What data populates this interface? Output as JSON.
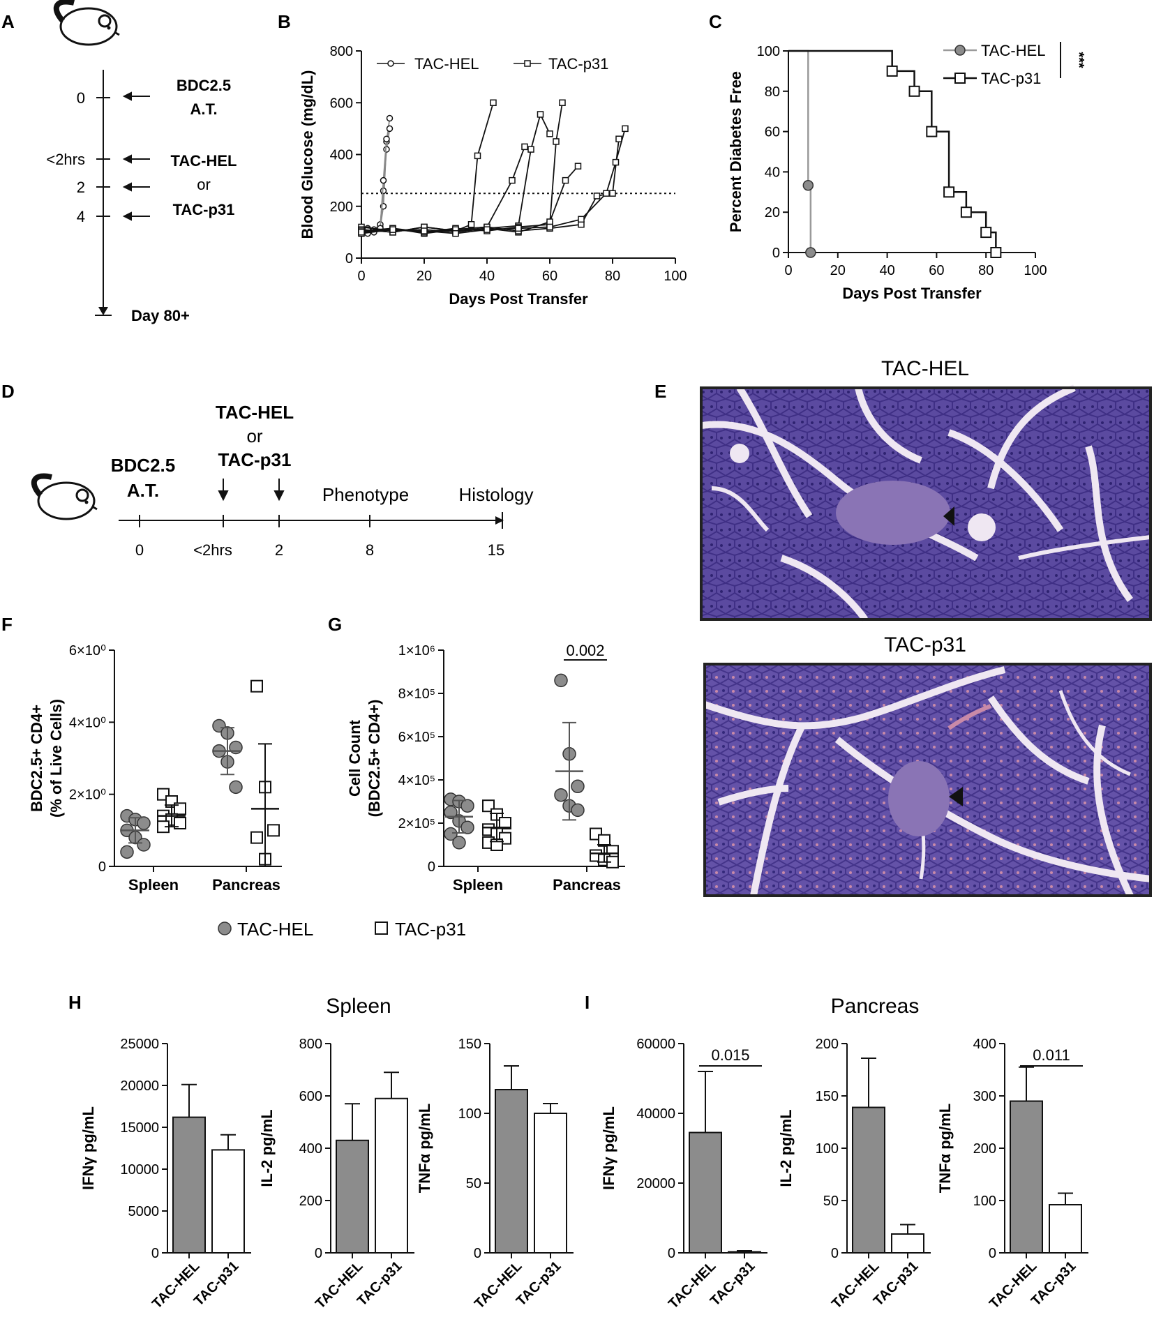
{
  "panel_letters": [
    "A",
    "B",
    "C",
    "D",
    "E",
    "F",
    "G",
    "H",
    "I"
  ],
  "panel_a": {
    "ticks": [
      "0",
      "<2hrs",
      "2",
      "4"
    ],
    "events": [
      "BDC2.5",
      "A.T.",
      "TAC-HEL",
      "or",
      "TAC-p31"
    ],
    "end_label": "Day 80+"
  },
  "panel_d": {
    "ticks": [
      "0",
      "<2hrs",
      "2",
      "8",
      "15"
    ],
    "labels": [
      "BDC2.5",
      "A.T.",
      "TAC-HEL",
      "or",
      "TAC-p31",
      "Phenotype",
      "Histology"
    ]
  },
  "panel_e": {
    "titles": [
      "TAC-HEL",
      "TAC-p31"
    ],
    "colors": {
      "tissue": "#5b4aa0",
      "dark": "#3f2f85",
      "islet": "#8a74b5",
      "duct": "#efe7f2",
      "pink": "#c98aa8"
    }
  },
  "legend_fg": [
    "TAC-HEL",
    "TAC-p31"
  ],
  "colors": {
    "hel_fill": "#8c8c8c",
    "p31_fill": "#ffffff",
    "hel_line": "#9a9a9a",
    "line": "#111111"
  },
  "panel_h_title": "Spleen",
  "panel_i_title": "Pancreas",
  "chart_data": [
    {
      "id": "B",
      "type": "line",
      "xlabel": "Days Post Transfer",
      "ylabel": "Blood Glucose (mg/dL)",
      "xlim": [
        0,
        100
      ],
      "ylim": [
        0,
        800
      ],
      "xticks": [
        "0",
        "20",
        "40",
        "60",
        "80",
        "100"
      ],
      "yticks": [
        "0",
        "200",
        "400",
        "600",
        "800"
      ],
      "threshold": 250,
      "legend": [
        "TAC-HEL",
        "TAC-p31"
      ],
      "series": [
        {
          "name": "TAC-HEL",
          "x": [
            0,
            2,
            4,
            6,
            7,
            8,
            9
          ],
          "y": [
            110,
            115,
            105,
            120,
            200,
            450,
            540
          ]
        },
        {
          "name": "TAC-HEL",
          "x": [
            0,
            2,
            4,
            6,
            7,
            8,
            9
          ],
          "y": [
            100,
            95,
            110,
            130,
            260,
            420,
            500
          ]
        },
        {
          "name": "TAC-HEL",
          "x": [
            0,
            2,
            4,
            6,
            7,
            8
          ],
          "y": [
            120,
            110,
            100,
            115,
            300,
            460
          ]
        },
        {
          "name": "TAC-p31",
          "x": [
            0,
            10,
            20,
            30,
            35,
            37,
            42
          ],
          "y": [
            110,
            100,
            120,
            105,
            130,
            395,
            600
          ]
        },
        {
          "name": "TAC-p31",
          "x": [
            0,
            10,
            20,
            30,
            40,
            48,
            52
          ],
          "y": [
            100,
            115,
            95,
            110,
            120,
            300,
            430
          ]
        },
        {
          "name": "TAC-p31",
          "x": [
            0,
            10,
            20,
            30,
            40,
            50,
            54,
            57,
            60
          ],
          "y": [
            120,
            105,
            110,
            100,
            115,
            125,
            420,
            555,
            480
          ]
        },
        {
          "name": "TAC-p31",
          "x": [
            0,
            10,
            20,
            30,
            40,
            50,
            60,
            62,
            64
          ],
          "y": [
            95,
            110,
            100,
            115,
            105,
            120,
            130,
            450,
            600
          ]
        },
        {
          "name": "TAC-p31",
          "x": [
            0,
            10,
            20,
            30,
            40,
            50,
            60,
            65,
            69
          ],
          "y": [
            110,
            100,
            120,
            105,
            115,
            100,
            140,
            300,
            355
          ]
        },
        {
          "name": "TAC-p31",
          "x": [
            0,
            10,
            20,
            30,
            40,
            50,
            60,
            70,
            75,
            80,
            82
          ],
          "y": [
            105,
            115,
            100,
            110,
            120,
            105,
            115,
            130,
            240,
            250,
            460
          ]
        },
        {
          "name": "TAC-p31",
          "x": [
            0,
            10,
            20,
            30,
            40,
            50,
            60,
            70,
            78,
            81,
            84
          ],
          "y": [
            100,
            110,
            105,
            95,
            110,
            115,
            120,
            150,
            250,
            370,
            500
          ]
        }
      ]
    },
    {
      "id": "C",
      "type": "line",
      "xlabel": "Days Post Transfer",
      "ylabel": "Percent Diabetes Free",
      "xlim": [
        0,
        100
      ],
      "ylim": [
        0,
        100
      ],
      "xticks": [
        "0",
        "20",
        "40",
        "60",
        "80",
        "100"
      ],
      "yticks": [
        "0",
        "20",
        "40",
        "60",
        "80",
        "100"
      ],
      "significance": "***",
      "series": [
        {
          "name": "TAC-HEL",
          "x": [
            0,
            8,
            8,
            9,
            9
          ],
          "y": [
            100,
            100,
            33.3,
            33.3,
            0
          ]
        },
        {
          "name": "TAC-p31",
          "x": [
            0,
            42,
            42,
            51,
            51,
            58,
            58,
            65,
            65,
            72,
            72,
            80,
            80,
            84,
            84
          ],
          "y": [
            100,
            100,
            90,
            90,
            80,
            80,
            60,
            60,
            30,
            30,
            20,
            20,
            10,
            10,
            0
          ]
        }
      ]
    },
    {
      "id": "F",
      "type": "scatter",
      "ylabel": "BDC2.5+ CD4+ (% of Live Cells)",
      "categories": [
        "Spleen",
        "Pancreas"
      ],
      "ylim": [
        0,
        6
      ],
      "yticks": [
        "0",
        "2×10⁰",
        "4×10⁰",
        "6×10⁰"
      ],
      "series": [
        {
          "name": "TAC-HEL",
          "groups": [
            [
              1.4,
              1.3,
              1.2,
              1.0,
              0.8,
              0.6,
              0.4
            ],
            [
              3.9,
              3.7,
              3.3,
              3.2,
              2.9,
              2.2
            ]
          ],
          "mean": [
            1.0,
            3.2
          ],
          "sd": [
            0.35,
            0.65
          ]
        },
        {
          "name": "TAC-p31",
          "groups": [
            [
              2.0,
              1.8,
              1.6,
              1.4,
              1.3,
              1.2,
              1.1
            ],
            [
              5.0,
              2.2,
              1.0,
              0.8,
              0.2
            ]
          ],
          "mean": [
            1.4,
            1.6
          ],
          "sd": [
            0.3,
            1.8
          ]
        }
      ]
    },
    {
      "id": "G",
      "type": "scatter",
      "ylabel": "Cell Count (BDC2.5+ CD4+)",
      "categories": [
        "Spleen",
        "Pancreas"
      ],
      "ylim": [
        0,
        1000000
      ],
      "yticks": [
        "0",
        "2×10⁵",
        "4×10⁵",
        "6×10⁵",
        "8×10⁵",
        "1×10⁶"
      ],
      "annotation": "0.002",
      "series": [
        {
          "name": "TAC-HEL",
          "groups": [
            [
              310000,
              300000,
              280000,
              250000,
              210000,
              180000,
              150000,
              110000
            ],
            [
              860000,
              520000,
              370000,
              330000,
              280000,
              260000
            ]
          ],
          "mean": [
            230000,
            440000
          ],
          "sd": [
            75000,
            225000
          ]
        },
        {
          "name": "TAC-p31",
          "groups": [
            [
              280000,
              240000,
              200000,
              170000,
              150000,
              130000,
              110000,
              100000
            ],
            [
              150000,
              120000,
              70000,
              50000,
              30000,
              20000
            ]
          ],
          "mean": [
            180000,
            60000
          ],
          "sd": [
            65000,
            40000
          ]
        }
      ]
    },
    {
      "id": "H1",
      "type": "bar",
      "ylabel": "IFNγ pg/mL",
      "categories": [
        "TAC-HEL",
        "TAC-p31"
      ],
      "values": [
        16200,
        12300
      ],
      "errors": [
        3900,
        1800
      ],
      "ylim": [
        0,
        25000
      ],
      "yticks": [
        "0",
        "5000",
        "10000",
        "15000",
        "20000",
        "25000"
      ]
    },
    {
      "id": "H2",
      "type": "bar",
      "ylabel": "IL-2 pg/mL",
      "categories": [
        "TAC-HEL",
        "TAC-p31"
      ],
      "values": [
        430,
        590
      ],
      "errors": [
        140,
        100
      ],
      "ylim": [
        0,
        800
      ],
      "yticks": [
        "0",
        "200",
        "400",
        "600",
        "800"
      ]
    },
    {
      "id": "H3",
      "type": "bar",
      "ylabel": "TNFα pg/mL",
      "categories": [
        "TAC-HEL",
        "TAC-p31"
      ],
      "values": [
        117,
        100
      ],
      "errors": [
        17,
        7
      ],
      "ylim": [
        0,
        150
      ],
      "yticks": [
        "0",
        "50",
        "100",
        "150"
      ]
    },
    {
      "id": "I1",
      "type": "bar",
      "ylabel": "IFNγ pg/mL",
      "categories": [
        "TAC-HEL",
        "TAC-p31"
      ],
      "values": [
        34500,
        300
      ],
      "errors": [
        17500,
        300
      ],
      "ylim": [
        0,
        60000
      ],
      "yticks": [
        "0",
        "20000",
        "40000",
        "60000"
      ],
      "annotation": "0.015"
    },
    {
      "id": "I2",
      "type": "bar",
      "ylabel": "IL-2 pg/mL",
      "categories": [
        "TAC-HEL",
        "TAC-p31"
      ],
      "values": [
        139,
        18
      ],
      "errors": [
        47,
        9
      ],
      "ylim": [
        0,
        200
      ],
      "yticks": [
        "0",
        "50",
        "100",
        "150",
        "200"
      ]
    },
    {
      "id": "I3",
      "type": "bar",
      "ylabel": "TNFα pg/mL",
      "categories": [
        "TAC-HEL",
        "TAC-p31"
      ],
      "values": [
        290,
        92
      ],
      "errors": [
        65,
        22
      ],
      "ylim": [
        0,
        400
      ],
      "yticks": [
        "0",
        "100",
        "200",
        "300",
        "400"
      ],
      "annotation": "0.011"
    }
  ]
}
